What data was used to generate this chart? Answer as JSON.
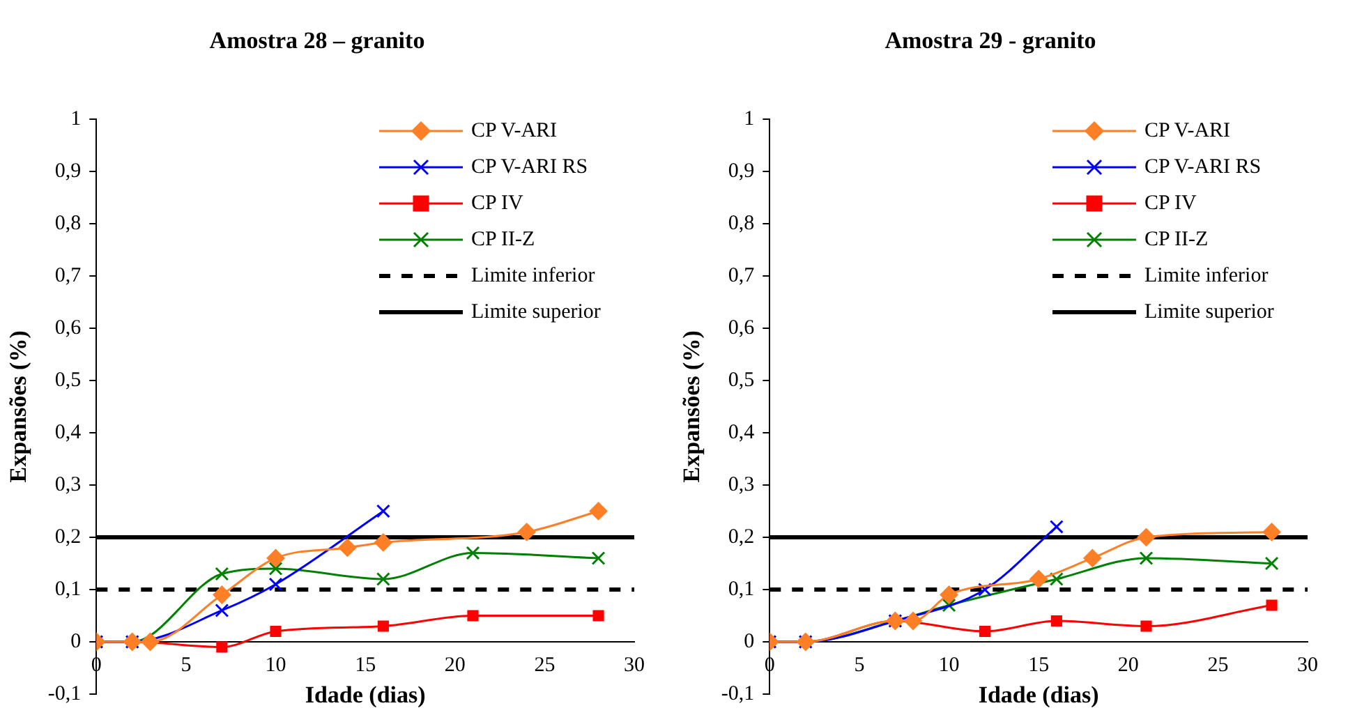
{
  "chart_data": [
    {
      "type": "line",
      "title": "Amostra 28 – granito",
      "xlabel": "Idade (dias)",
      "ylabel": "Expansões (%)",
      "xlim": [
        0,
        30
      ],
      "xticks": [
        0,
        5,
        10,
        15,
        20,
        25,
        30
      ],
      "ylim": [
        -0.1,
        1
      ],
      "yticks": [
        {
          "value": -0.1,
          "label": "-0,1"
        },
        {
          "value": 0,
          "label": "0"
        },
        {
          "value": 0.1,
          "label": "0,1"
        },
        {
          "value": 0.2,
          "label": "0,2"
        },
        {
          "value": 0.3,
          "label": "0,3"
        },
        {
          "value": 0.4,
          "label": "0,4"
        },
        {
          "value": 0.5,
          "label": "0,5"
        },
        {
          "value": 0.6,
          "label": "0,6"
        },
        {
          "value": 0.7,
          "label": "0,7"
        },
        {
          "value": 0.8,
          "label": "0,8"
        },
        {
          "value": 0.9,
          "label": "0,9"
        },
        {
          "value": 1,
          "label": "1"
        }
      ],
      "grid": false,
      "legend": "top right",
      "series": [
        {
          "name": "CP V-ARI",
          "color": "#ff7f27",
          "marker": "diamond",
          "x": [
            0,
            2,
            3,
            7,
            10,
            14,
            16,
            24,
            28
          ],
          "values": [
            0,
            0,
            0,
            0.09,
            0.16,
            0.18,
            0.19,
            0.21,
            0.25
          ]
        },
        {
          "name": "CP V-ARI RS",
          "color": "#0000ff",
          "marker": "cross",
          "x": [
            0,
            2,
            7,
            10,
            16
          ],
          "values": [
            0,
            0,
            0.06,
            0.11,
            0.25
          ]
        },
        {
          "name": "CP IV",
          "color": "#ff0000",
          "marker": "square",
          "x": [
            0,
            2,
            7,
            10,
            16,
            21,
            28
          ],
          "values": [
            0,
            0,
            -0.01,
            0.02,
            0.03,
            0.05,
            0.05
          ]
        },
        {
          "name": "CP II-Z",
          "color": "#008000",
          "marker": "cross",
          "x": [
            0,
            2,
            7,
            10,
            16,
            21,
            28
          ],
          "values": [
            0,
            0,
            0.13,
            0.14,
            0.12,
            0.17,
            0.16
          ]
        },
        {
          "name": "Limite inferior",
          "color": "#000000",
          "marker": "none",
          "line_style": "dashed",
          "x": [
            0,
            30
          ],
          "values": [
            0.1,
            0.1
          ]
        },
        {
          "name": "Limite superior",
          "color": "#000000",
          "marker": "none",
          "line_style": "solid",
          "x": [
            0,
            30
          ],
          "values": [
            0.2,
            0.2
          ]
        }
      ]
    },
    {
      "type": "line",
      "title": "Amostra 29 - granito",
      "xlabel": "Idade (dias)",
      "ylabel": "Expansões (%)",
      "xlim": [
        0,
        30
      ],
      "xticks": [
        0,
        5,
        10,
        15,
        20,
        25,
        30
      ],
      "ylim": [
        -0.1,
        1
      ],
      "yticks": [
        {
          "value": -0.1,
          "label": "-0,1"
        },
        {
          "value": 0,
          "label": "0"
        },
        {
          "value": 0.1,
          "label": "0,1"
        },
        {
          "value": 0.2,
          "label": "0,2"
        },
        {
          "value": 0.3,
          "label": "0,3"
        },
        {
          "value": 0.4,
          "label": "0,4"
        },
        {
          "value": 0.5,
          "label": "0,5"
        },
        {
          "value": 0.6,
          "label": "0,6"
        },
        {
          "value": 0.7,
          "label": "0,7"
        },
        {
          "value": 0.8,
          "label": "0,8"
        },
        {
          "value": 0.9,
          "label": "0,9"
        },
        {
          "value": 1,
          "label": "1"
        }
      ],
      "grid": false,
      "legend": "top right",
      "series": [
        {
          "name": "CP V-ARI",
          "color": "#ff7f27",
          "marker": "diamond",
          "x": [
            0,
            2,
            7,
            8,
            10,
            15,
            18,
            21,
            28
          ],
          "values": [
            0,
            0,
            0.04,
            0.04,
            0.09,
            0.12,
            0.16,
            0.2,
            0.21
          ]
        },
        {
          "name": "CP V-ARI RS",
          "color": "#0000ff",
          "marker": "cross",
          "x": [
            0,
            2,
            7,
            12,
            16
          ],
          "values": [
            0,
            0,
            0.04,
            0.1,
            0.22
          ]
        },
        {
          "name": "CP IV",
          "color": "#ff0000",
          "marker": "square",
          "x": [
            0,
            2,
            7,
            12,
            16,
            21,
            28
          ],
          "values": [
            0,
            0,
            0.04,
            0.02,
            0.04,
            0.03,
            0.07
          ]
        },
        {
          "name": "CP II-Z",
          "color": "#008000",
          "marker": "cross",
          "x": [
            0,
            2,
            7,
            10,
            16,
            21,
            28
          ],
          "values": [
            0,
            0,
            0.04,
            0.07,
            0.12,
            0.16,
            0.15
          ]
        },
        {
          "name": "Limite inferior",
          "color": "#000000",
          "marker": "none",
          "line_style": "dashed",
          "x": [
            0,
            30
          ],
          "values": [
            0.1,
            0.1
          ]
        },
        {
          "name": "Limite superior",
          "color": "#000000",
          "marker": "none",
          "line_style": "solid",
          "x": [
            0,
            30
          ],
          "values": [
            0.2,
            0.2
          ]
        }
      ]
    }
  ]
}
